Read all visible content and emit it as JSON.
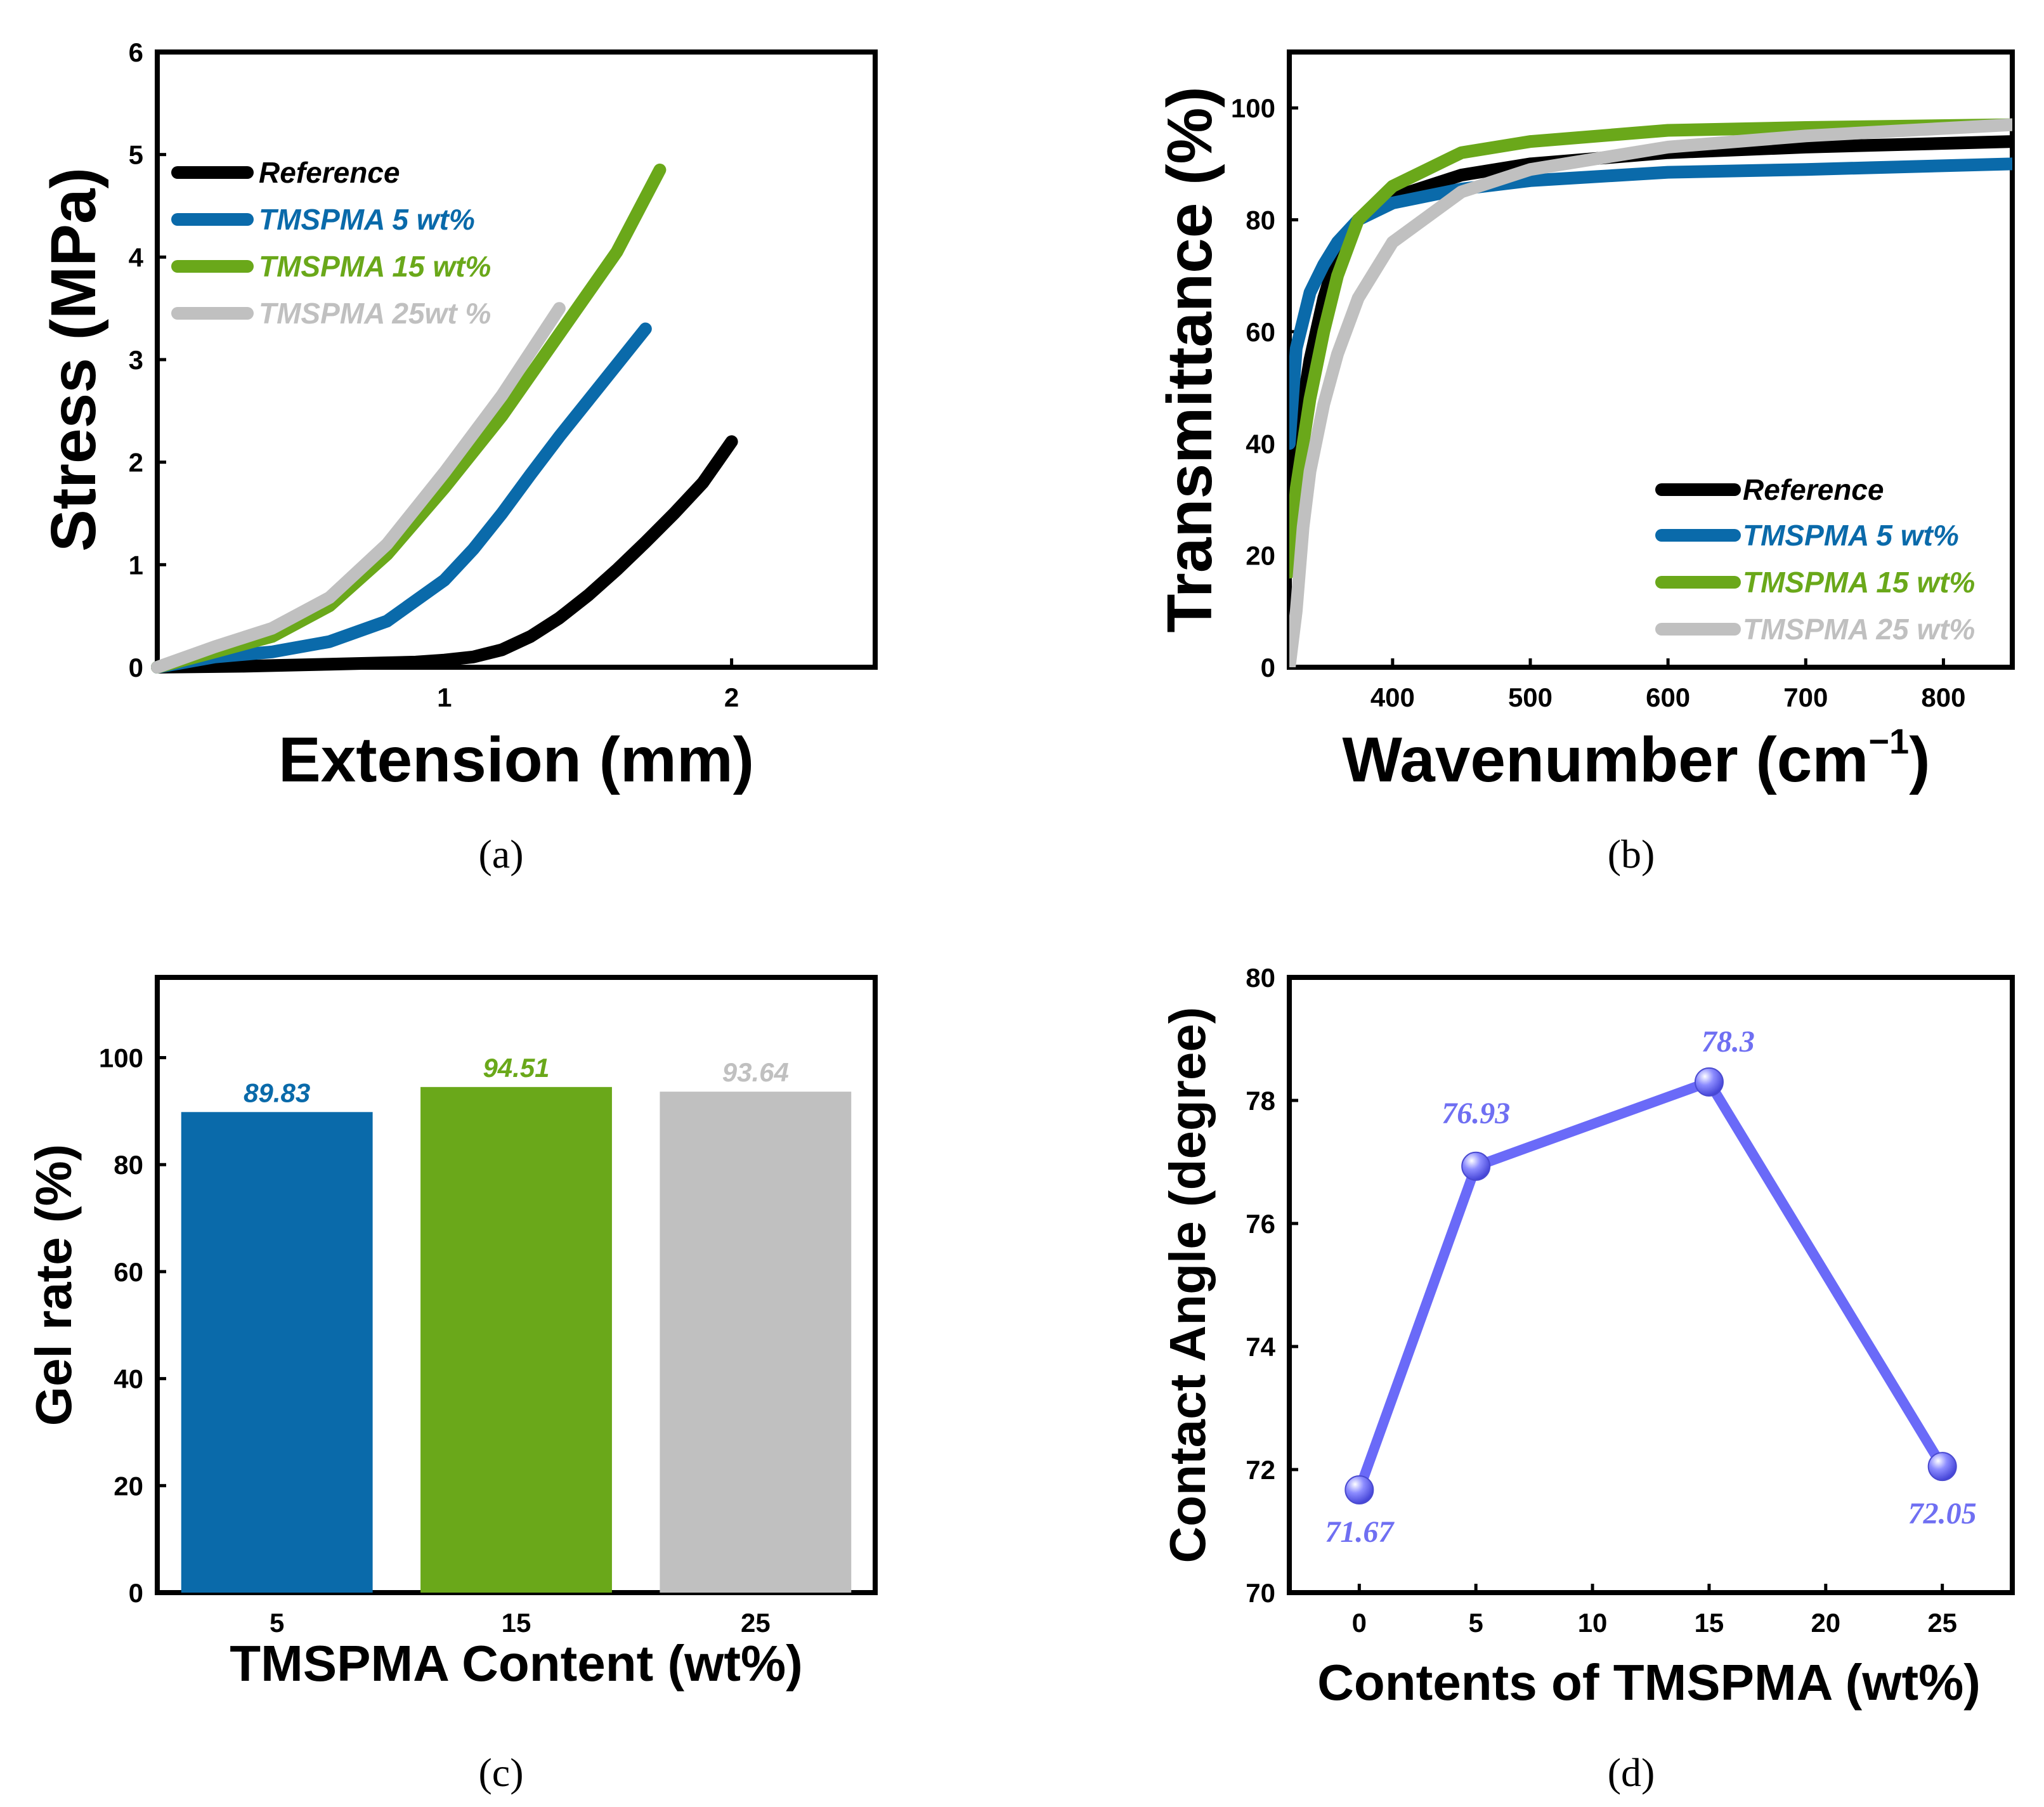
{
  "colors": {
    "reference": "#000000",
    "tmspma5": "#0a6aaa",
    "tmspma15": "#6aa81a",
    "tmspma25": "#c0c0c0",
    "contact": "#6a6af8"
  },
  "panels": {
    "a": "(a)",
    "b": "(b)",
    "c": "(c)",
    "d": "(d)"
  },
  "chart_data": [
    {
      "type": "line",
      "panel": "(a)",
      "xlabel": "Extension (mm)",
      "ylabel": "Stress (MPa)",
      "xlim": [
        0,
        2.5
      ],
      "ylim": [
        0,
        6
      ],
      "xticks": [
        1,
        2
      ],
      "yticks": [
        0,
        1,
        2,
        3,
        4,
        5,
        6
      ],
      "grid": false,
      "legend": "top-left",
      "series": [
        {
          "name": "Reference",
          "x": [
            0,
            0.3,
            0.6,
            0.9,
            1.0,
            1.1,
            1.2,
            1.3,
            1.4,
            1.5,
            1.6,
            1.7,
            1.8,
            1.9,
            2.0
          ],
          "y": [
            0,
            0.01,
            0.03,
            0.05,
            0.07,
            0.1,
            0.17,
            0.3,
            0.48,
            0.7,
            0.95,
            1.22,
            1.5,
            1.8,
            2.2
          ]
        },
        {
          "name": "TMSPMA 5 wt%",
          "x": [
            0,
            0.2,
            0.4,
            0.6,
            0.8,
            1.0,
            1.1,
            1.2,
            1.3,
            1.4,
            1.5,
            1.6,
            1.7
          ],
          "y": [
            0,
            0.1,
            0.15,
            0.25,
            0.45,
            0.85,
            1.15,
            1.5,
            1.88,
            2.25,
            2.6,
            2.95,
            3.3
          ]
        },
        {
          "name": "TMSPMA 15 wt%",
          "x": [
            0,
            0.2,
            0.4,
            0.6,
            0.8,
            1.0,
            1.2,
            1.4,
            1.6,
            1.75
          ],
          "y": [
            0,
            0.15,
            0.3,
            0.6,
            1.1,
            1.75,
            2.45,
            3.25,
            4.05,
            4.85
          ]
        },
        {
          "name": "TMSPMA 25wt %",
          "x": [
            0,
            0.2,
            0.4,
            0.6,
            0.8,
            1.0,
            1.2,
            1.4
          ],
          "y": [
            0,
            0.2,
            0.38,
            0.68,
            1.2,
            1.9,
            2.65,
            3.5
          ]
        }
      ]
    },
    {
      "type": "line",
      "panel": "(b)",
      "xlabel": "Wavenumber",
      "xunit": "cm",
      "xunit_sup": "−1",
      "ylabel": "Transmittance (%)",
      "xlim": [
        325,
        850
      ],
      "ylim": [
        0,
        110
      ],
      "xticks": [
        400,
        500,
        600,
        700,
        800
      ],
      "yticks": [
        0,
        20,
        40,
        60,
        80,
        100
      ],
      "grid": false,
      "legend": "bottom-right",
      "series": [
        {
          "name": "Reference",
          "x": [
            325,
            330,
            340,
            350,
            360,
            375,
            400,
            450,
            500,
            600,
            700,
            850
          ],
          "y": [
            20,
            40,
            55,
            66,
            74,
            80,
            84,
            88,
            90,
            92,
            93,
            94
          ]
        },
        {
          "name": "TMSPMA 5 wt%",
          "x": [
            325,
            330,
            340,
            350,
            360,
            375,
            400,
            450,
            500,
            600,
            700,
            850
          ],
          "y": [
            40,
            57,
            67,
            72,
            76,
            80,
            83,
            85.5,
            87,
            88.5,
            89,
            90
          ]
        },
        {
          "name": "TMSPMA 15 wt%",
          "x": [
            325,
            330,
            340,
            350,
            360,
            375,
            400,
            450,
            500,
            600,
            700,
            850
          ],
          "y": [
            17,
            32,
            48,
            60,
            70,
            80,
            86,
            92,
            94,
            96,
            96.5,
            97
          ]
        },
        {
          "name": "TMSPMA 25 wt%",
          "x": [
            325,
            330,
            335,
            340,
            350,
            360,
            375,
            400,
            450,
            500,
            600,
            700,
            850
          ],
          "y": [
            0,
            10,
            25,
            35,
            47,
            56,
            66,
            76,
            85,
            89,
            93,
            95,
            97
          ]
        }
      ]
    },
    {
      "type": "bar",
      "panel": "(c)",
      "xlabel": "TMSPMA Content (wt%)",
      "ylabel": "Gel rate (%)",
      "ylim": [
        0,
        115
      ],
      "yticks": [
        0,
        20,
        40,
        60,
        80,
        100
      ],
      "categories": [
        "5",
        "15",
        "25"
      ],
      "values": [
        89.83,
        94.51,
        93.64
      ],
      "value_labels": [
        "89.83",
        "94.51",
        "93.64"
      ]
    },
    {
      "type": "line",
      "panel": "(d)",
      "xlabel": "Contents of TMSPMA (wt%)",
      "ylabel": "Contact Angle (degree)",
      "xlim": [
        -3,
        28
      ],
      "ylim": [
        70,
        80
      ],
      "xticks": [
        0,
        5,
        10,
        15,
        20,
        25
      ],
      "yticks": [
        70,
        72,
        74,
        76,
        78,
        80
      ],
      "x": [
        0,
        5,
        15,
        25
      ],
      "y": [
        71.67,
        76.93,
        78.3,
        72.05
      ],
      "point_labels": [
        "71.67",
        "76.93",
        "78.3",
        "72.05"
      ]
    }
  ]
}
